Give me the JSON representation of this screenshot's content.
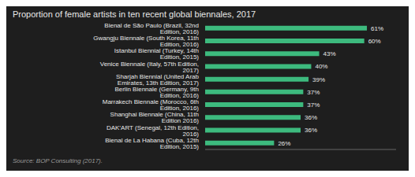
{
  "chart_data": {
    "type": "bar",
    "title": "Proportion of female artists in ten recent global biennales, 2017",
    "source": "Source: BOP Consulting (2017).",
    "orientation": "horizontal",
    "categories": [
      "Bienal de La Habana (Cuba, 12th Edition, 2015)",
      "DAK’ART (Senegal, 12th Edition, 2016)",
      "Shanghai Biennale (China, 11th Edition 2016)",
      "Marrakech Biennale (Morocco, 6th Edition, 2016)",
      "Berlin Biennale (Germany, 9th Edition, 2016)",
      "Sharjah Biennial (United Arab Emirates, 13th Edition, 2017)",
      "Venice Biennale (Italy, 57th Edition, 2017)",
      "Istanbul Biennial (Turkey, 14th Edition, 2015)",
      "Gwangju Biennale (South Korea, 11th Edition, 2016)",
      "Bienal de São Paulo (Brazil, 32nd Edition, 2016)"
    ],
    "values": [
      26,
      36,
      36,
      37,
      37,
      39,
      40,
      43,
      60,
      61
    ],
    "value_labels": [
      "26%",
      "36%",
      "36%",
      "37%",
      "37%",
      "39%",
      "40%",
      "43%",
      "60%",
      "61%"
    ],
    "data_labels": true,
    "color": "#3dba7e",
    "xlim": [
      0,
      72
    ],
    "tick_labels": "y",
    "grid": false
  }
}
